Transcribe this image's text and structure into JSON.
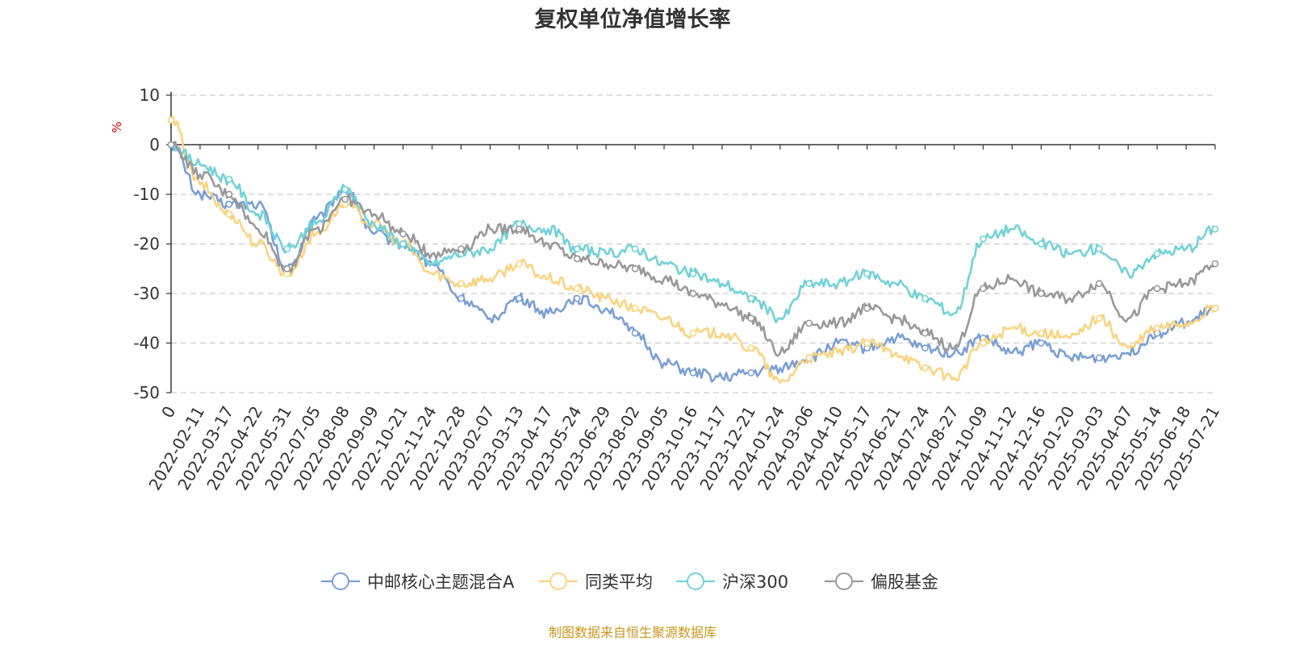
{
  "chart_data": {
    "type": "line",
    "title": "复权单位净值增长率",
    "y_unit": "%",
    "ylim": [
      -50,
      10
    ],
    "yticks": [
      10,
      0,
      -10,
      -20,
      -30,
      -40,
      -50
    ],
    "grid": true,
    "legend_position": "bottom",
    "source_note": "制图数据来自恒生聚源数据库",
    "x_labels": [
      "0",
      "2022-02-11",
      "2022-03-17",
      "2022-04-22",
      "2022-05-31",
      "2022-07-05",
      "2022-08-08",
      "2022-09-09",
      "2022-10-21",
      "2022-11-24",
      "2022-12-28",
      "2023-02-07",
      "2023-03-13",
      "2023-04-17",
      "2023-05-24",
      "2023-06-29",
      "2023-08-02",
      "2023-09-05",
      "2023-10-16",
      "2023-11-17",
      "2023-12-21",
      "2024-01-24",
      "2024-03-06",
      "2024-04-10",
      "2024-05-17",
      "2024-06-21",
      "2024-07-24",
      "2024-08-27",
      "2024-10-09",
      "2024-11-12",
      "2024-12-16",
      "2025-01-20",
      "2025-03-03",
      "2025-04-07",
      "2025-05-14",
      "2025-06-18",
      "2025-07-21"
    ],
    "series": [
      {
        "name": "中邮核心主题混合A",
        "color": "#7b9fd4",
        "values": [
          0,
          -10,
          -12,
          -12,
          -25,
          -15,
          -9,
          -18,
          -20,
          -24,
          -31,
          -35,
          -31,
          -34,
          -31,
          -33,
          -38,
          -44,
          -46,
          -47,
          -46,
          -45,
          -43,
          -40,
          -41,
          -39,
          -41,
          -42,
          -39,
          -42,
          -40,
          -43,
          -43,
          -42,
          -38,
          -36,
          -33
        ]
      },
      {
        "name": "同类平均",
        "color": "#fad37f",
        "values": [
          5,
          -8,
          -14,
          -20,
          -26,
          -18,
          -12,
          -16,
          -20,
          -26,
          -28,
          -27,
          -24,
          -27,
          -29,
          -31,
          -33,
          -35,
          -38,
          -38,
          -41,
          -48,
          -43,
          -42,
          -40,
          -42,
          -45,
          -47,
          -40,
          -37,
          -38,
          -39,
          -35,
          -41,
          -37,
          -36,
          -33
        ]
      },
      {
        "name": "沪深300",
        "color": "#72d1d9",
        "values": [
          0,
          -4,
          -7,
          -14,
          -21,
          -16,
          -9,
          -16,
          -20,
          -24,
          -22,
          -21,
          -16,
          -17,
          -21,
          -22,
          -21,
          -24,
          -26,
          -28,
          -31,
          -35,
          -28,
          -28,
          -26,
          -28,
          -31,
          -34,
          -19,
          -17,
          -20,
          -22,
          -21,
          -26,
          -22,
          -21,
          -17
        ]
      },
      {
        "name": "偏股基金",
        "color": "#999999",
        "values": [
          0,
          -6,
          -10,
          -17,
          -25,
          -17,
          -11,
          -14,
          -18,
          -22,
          -21,
          -17,
          -17,
          -20,
          -23,
          -24,
          -25,
          -27,
          -30,
          -32,
          -35,
          -42,
          -36,
          -36,
          -33,
          -35,
          -38,
          -41,
          -29,
          -27,
          -30,
          -31,
          -28,
          -35,
          -29,
          -28,
          -24
        ]
      }
    ]
  }
}
